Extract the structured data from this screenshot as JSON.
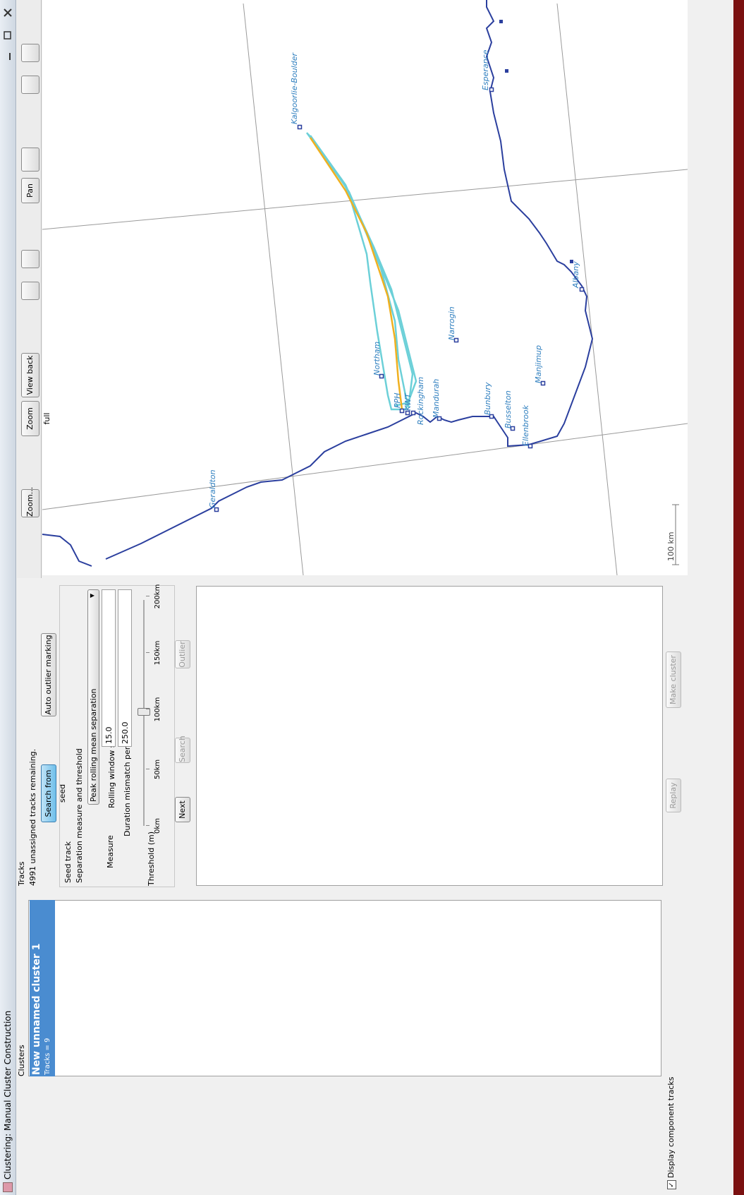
{
  "window": {
    "title": "Clustering: Manual Cluster Construction"
  },
  "clusters": {
    "label": "Clusters",
    "items": [
      {
        "name": "New unnamed cluster 1",
        "detail": "Tracks = 9"
      }
    ],
    "display_component_tracks": "Display component tracks"
  },
  "tracks": {
    "label": "Tracks",
    "status": "4991 unassigned tracks remaining.",
    "search_from_seed": "Search from seed",
    "auto_outlier_marking": "Auto outlier marking",
    "seed_track": "Seed track",
    "separation_title": "Separation measure and threshold",
    "measure_label": "Measure",
    "measure": "Peak rolling mean separation",
    "rolling_window_label": "Rolling window size (min)",
    "rolling_window_value": "15.0",
    "duration_penalty_label": "Duration mismatch penalty (m/s)",
    "duration_penalty_value": "250.0",
    "threshold_label": "Threshold (m)",
    "threshold_ticks": [
      "0km",
      "50km",
      "100km",
      "150km",
      "200km"
    ],
    "next": "Next",
    "search": "Search",
    "outlier": "Outlier",
    "replay": "Replay",
    "make_cluster": "Make cluster"
  },
  "map": {
    "toolbar": [
      "Zoom...",
      "Zoom full",
      "View back",
      "Pan"
    ],
    "places": [
      "Kalgoorlie-Boulder",
      "Esperance",
      "Albany",
      "Narrogin",
      "Manjimup",
      "Northam",
      "PPH",
      "KWT",
      "Rockingham",
      "Mandurah",
      "Bunbury",
      "Busselton",
      "Ellenbrook",
      "Geraldton"
    ],
    "scale": "100 km"
  }
}
